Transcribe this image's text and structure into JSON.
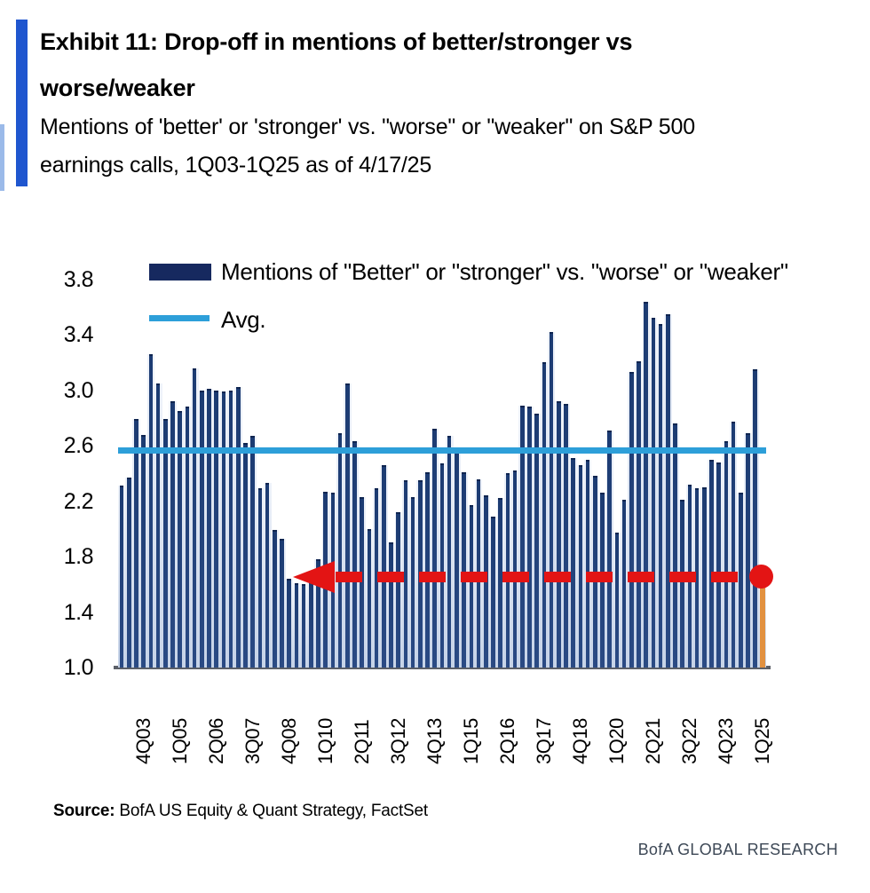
{
  "header": {
    "title_lines": [
      "Exhibit 11: Drop-off in mentions of better/stronger vs",
      "worse/weaker"
    ],
    "subtitle_lines": [
      "Mentions of 'better' or 'stronger' vs. \"worse\" or \"weaker\" on S&P 500",
      "earnings calls, 1Q03-1Q25 as of 4/17/25"
    ]
  },
  "legend": {
    "bars_label": "Mentions of \"Better\" or \"stronger\" vs. \"worse\" or \"weaker\"",
    "avg_label": "Avg."
  },
  "source": {
    "prefix": "Source:",
    "text": " BofA US Equity & Quant Strategy, FactSet"
  },
  "footer_brand": "BofA GLOBAL RESEARCH",
  "chart_data": {
    "type": "bar",
    "title": "Mentions of 'better' or 'stronger' vs. 'worse' or 'weaker' on S&P 500 earnings calls, 1Q03-1Q25 as of 4/17/25",
    "categories": [
      "1Q03",
      "2Q03",
      "3Q03",
      "4Q03",
      "1Q04",
      "2Q04",
      "3Q04",
      "4Q04",
      "1Q05",
      "2Q05",
      "3Q05",
      "4Q05",
      "1Q06",
      "2Q06",
      "3Q06",
      "4Q06",
      "1Q07",
      "2Q07",
      "3Q07",
      "4Q07",
      "1Q08",
      "2Q08",
      "3Q08",
      "4Q08",
      "1Q09",
      "2Q09",
      "3Q09",
      "4Q09",
      "1Q10",
      "2Q10",
      "3Q10",
      "4Q10",
      "1Q11",
      "2Q11",
      "3Q11",
      "4Q11",
      "1Q12",
      "2Q12",
      "3Q12",
      "4Q12",
      "1Q13",
      "2Q13",
      "3Q13",
      "4Q13",
      "1Q14",
      "2Q14",
      "3Q14",
      "4Q14",
      "1Q15",
      "2Q15",
      "3Q15",
      "4Q15",
      "1Q16",
      "2Q16",
      "3Q16",
      "4Q16",
      "1Q17",
      "2Q17",
      "3Q17",
      "4Q17",
      "1Q18",
      "2Q18",
      "3Q18",
      "4Q18",
      "1Q19",
      "2Q19",
      "3Q19",
      "4Q19",
      "1Q20",
      "2Q20",
      "3Q20",
      "4Q20",
      "1Q21",
      "2Q21",
      "3Q21",
      "4Q21",
      "1Q22",
      "2Q22",
      "3Q22",
      "4Q22",
      "1Q23",
      "2Q23",
      "3Q23",
      "4Q23",
      "1Q24",
      "2Q24",
      "3Q24",
      "4Q24",
      "1Q25"
    ],
    "values": [
      2.31,
      2.37,
      2.79,
      2.68,
      3.26,
      3.05,
      2.79,
      2.92,
      2.85,
      2.88,
      3.16,
      3.0,
      3.01,
      3.0,
      2.99,
      3.0,
      3.02,
      2.62,
      2.67,
      2.29,
      2.33,
      1.99,
      1.93,
      1.64,
      1.61,
      1.6,
      1.62,
      1.78,
      2.27,
      2.26,
      2.69,
      3.05,
      2.63,
      2.23,
      2.0,
      2.29,
      2.46,
      1.9,
      2.12,
      2.35,
      2.23,
      2.35,
      2.41,
      2.72,
      2.47,
      2.67,
      2.58,
      2.41,
      2.17,
      2.36,
      2.24,
      2.09,
      2.22,
      2.4,
      2.42,
      2.89,
      2.88,
      2.83,
      3.2,
      3.42,
      2.92,
      2.9,
      2.51,
      2.46,
      2.5,
      2.38,
      2.26,
      2.71,
      1.97,
      2.21,
      3.13,
      3.21,
      3.64,
      3.52,
      3.48,
      3.55,
      2.76,
      2.21,
      2.32,
      2.29,
      2.3,
      2.5,
      2.48,
      2.63,
      2.77,
      2.26,
      2.69,
      3.15,
      1.65
    ],
    "series_name": "Mentions of \"Better\" or \"stronger\" vs. \"worse\" or \"weaker\"",
    "avg_value": 2.57,
    "annotation_line": {
      "value": 1.65,
      "style": "red-dashed-arrow-pointing-left",
      "endpoint_category": "1Q25"
    },
    "last_bar": {
      "category": "1Q25",
      "value": 1.65,
      "highlight_color": "#e2913f"
    },
    "ylim": [
      1.0,
      3.8
    ],
    "y_ticks": [
      "3.8",
      "3.4",
      "3.0",
      "2.6",
      "2.2",
      "1.8",
      "1.4",
      "1.0"
    ],
    "x_tick_labels": [
      "4Q03",
      "1Q05",
      "2Q06",
      "3Q07",
      "4Q08",
      "1Q10",
      "2Q11",
      "3Q12",
      "4Q13",
      "1Q15",
      "2Q16",
      "3Q17",
      "4Q18",
      "1Q20",
      "2Q21",
      "3Q22",
      "4Q23",
      "1Q25"
    ],
    "x_tick_indices": [
      3,
      8,
      13,
      18,
      23,
      28,
      33,
      38,
      43,
      48,
      53,
      58,
      63,
      68,
      73,
      78,
      83,
      88
    ],
    "grid": "off",
    "legend_position": "top-left-inside",
    "colors": {
      "bar": "#1c3b72",
      "bar_top_edge": "#0f2550",
      "bar_backdrop_top": "#eff3fa",
      "bar_backdrop_bottom": "#c6d3e8",
      "avg_line": "#2d9fd9",
      "annotation_red": "#e31414",
      "last_bar": "#e2913f",
      "title_accent": "#1f56cf",
      "baseline": "#5c6068",
      "footer_text": "#3d4856"
    }
  }
}
